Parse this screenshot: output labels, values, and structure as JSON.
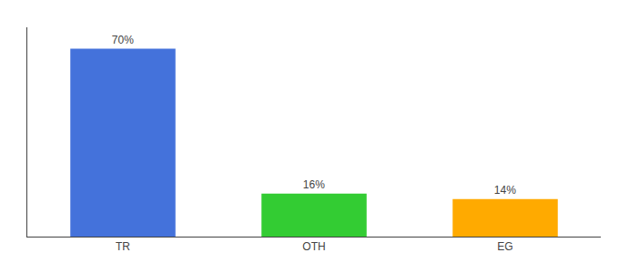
{
  "chart_data": {
    "type": "bar",
    "categories": [
      "TR",
      "OTH",
      "EG"
    ],
    "values": [
      70,
      16,
      14
    ],
    "value_labels": [
      "70%",
      "16%",
      "14%"
    ],
    "colors": [
      "#4472db",
      "#33cc33",
      "#ffaa00"
    ],
    "ylim": [
      0,
      78
    ],
    "data_labels": true,
    "tick_labels": "x",
    "grid": false
  }
}
